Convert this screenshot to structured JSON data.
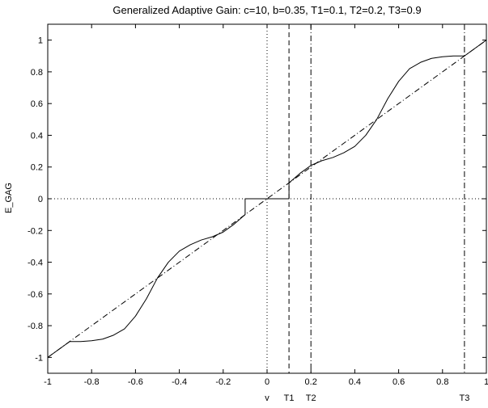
{
  "chart_data": {
    "type": "line",
    "title": "Generalized Adaptive Gain: c=10, b=0.35, T1=0.1, T2=0.2, T3=0.9",
    "xlabel": "",
    "ylabel": "E_GAG",
    "xlim": [
      -1,
      1
    ],
    "ylim": [
      -1.1,
      1.1
    ],
    "x_ticks": [
      -1,
      -0.8,
      -0.6,
      -0.4,
      -0.2,
      0,
      0.2,
      0.4,
      0.6,
      0.8,
      1
    ],
    "x_tick_labels": [
      "-1",
      "-0.8",
      "-0.6",
      "-0.4",
      "-0.2",
      "0",
      "0.2",
      "0.4",
      "0.6",
      "0.8",
      "1"
    ],
    "y_ticks": [
      -1,
      -0.8,
      -0.6,
      -0.4,
      -0.2,
      0,
      0.2,
      0.4,
      0.6,
      0.8,
      1
    ],
    "y_tick_labels": [
      "-1",
      "-0.8",
      "-0.6",
      "-0.4",
      "-0.2",
      "0",
      "0.2",
      "0.4",
      "0.6",
      "0.8",
      "1"
    ],
    "grid": false,
    "series": [
      {
        "style": "solid",
        "x": [
          -1.0,
          -0.9,
          -0.85,
          -0.8,
          -0.75,
          -0.7,
          -0.65,
          -0.6,
          -0.55,
          -0.5,
          -0.45,
          -0.4,
          -0.35,
          -0.3,
          -0.25,
          -0.2,
          -0.15,
          -0.1,
          -0.1,
          -0.05,
          0.0,
          0.05,
          0.1,
          0.1,
          0.15,
          0.2,
          0.25,
          0.3,
          0.35,
          0.4,
          0.45,
          0.5,
          0.55,
          0.6,
          0.65,
          0.7,
          0.75,
          0.8,
          0.85,
          0.9,
          1.0
        ],
        "y": [
          -1.0,
          -0.9,
          -0.9,
          -0.895,
          -0.885,
          -0.86,
          -0.82,
          -0.74,
          -0.63,
          -0.5,
          -0.4,
          -0.33,
          -0.29,
          -0.26,
          -0.24,
          -0.21,
          -0.16,
          -0.1,
          0.0,
          0.0,
          0.0,
          0.0,
          0.0,
          0.1,
          0.16,
          0.21,
          0.24,
          0.26,
          0.29,
          0.33,
          0.4,
          0.5,
          0.63,
          0.74,
          0.82,
          0.86,
          0.885,
          0.895,
          0.9,
          0.9,
          1.0
        ]
      },
      {
        "style": "dashdot",
        "x": [
          -1,
          1
        ],
        "y": [
          -1,
          1
        ]
      }
    ],
    "reference_lines": [
      {
        "orientation": "vertical",
        "x": 0,
        "style": "dotted",
        "label": "v"
      },
      {
        "orientation": "vertical",
        "x": 0.1,
        "style": "dashed",
        "label": "T1"
      },
      {
        "orientation": "vertical",
        "x": 0.2,
        "style": "dashdot",
        "label": "T2"
      },
      {
        "orientation": "vertical",
        "x": 0.9,
        "style": "dashdot",
        "label": "T3"
      },
      {
        "orientation": "horizontal",
        "y": 0,
        "style": "dotted",
        "label": ""
      }
    ]
  }
}
